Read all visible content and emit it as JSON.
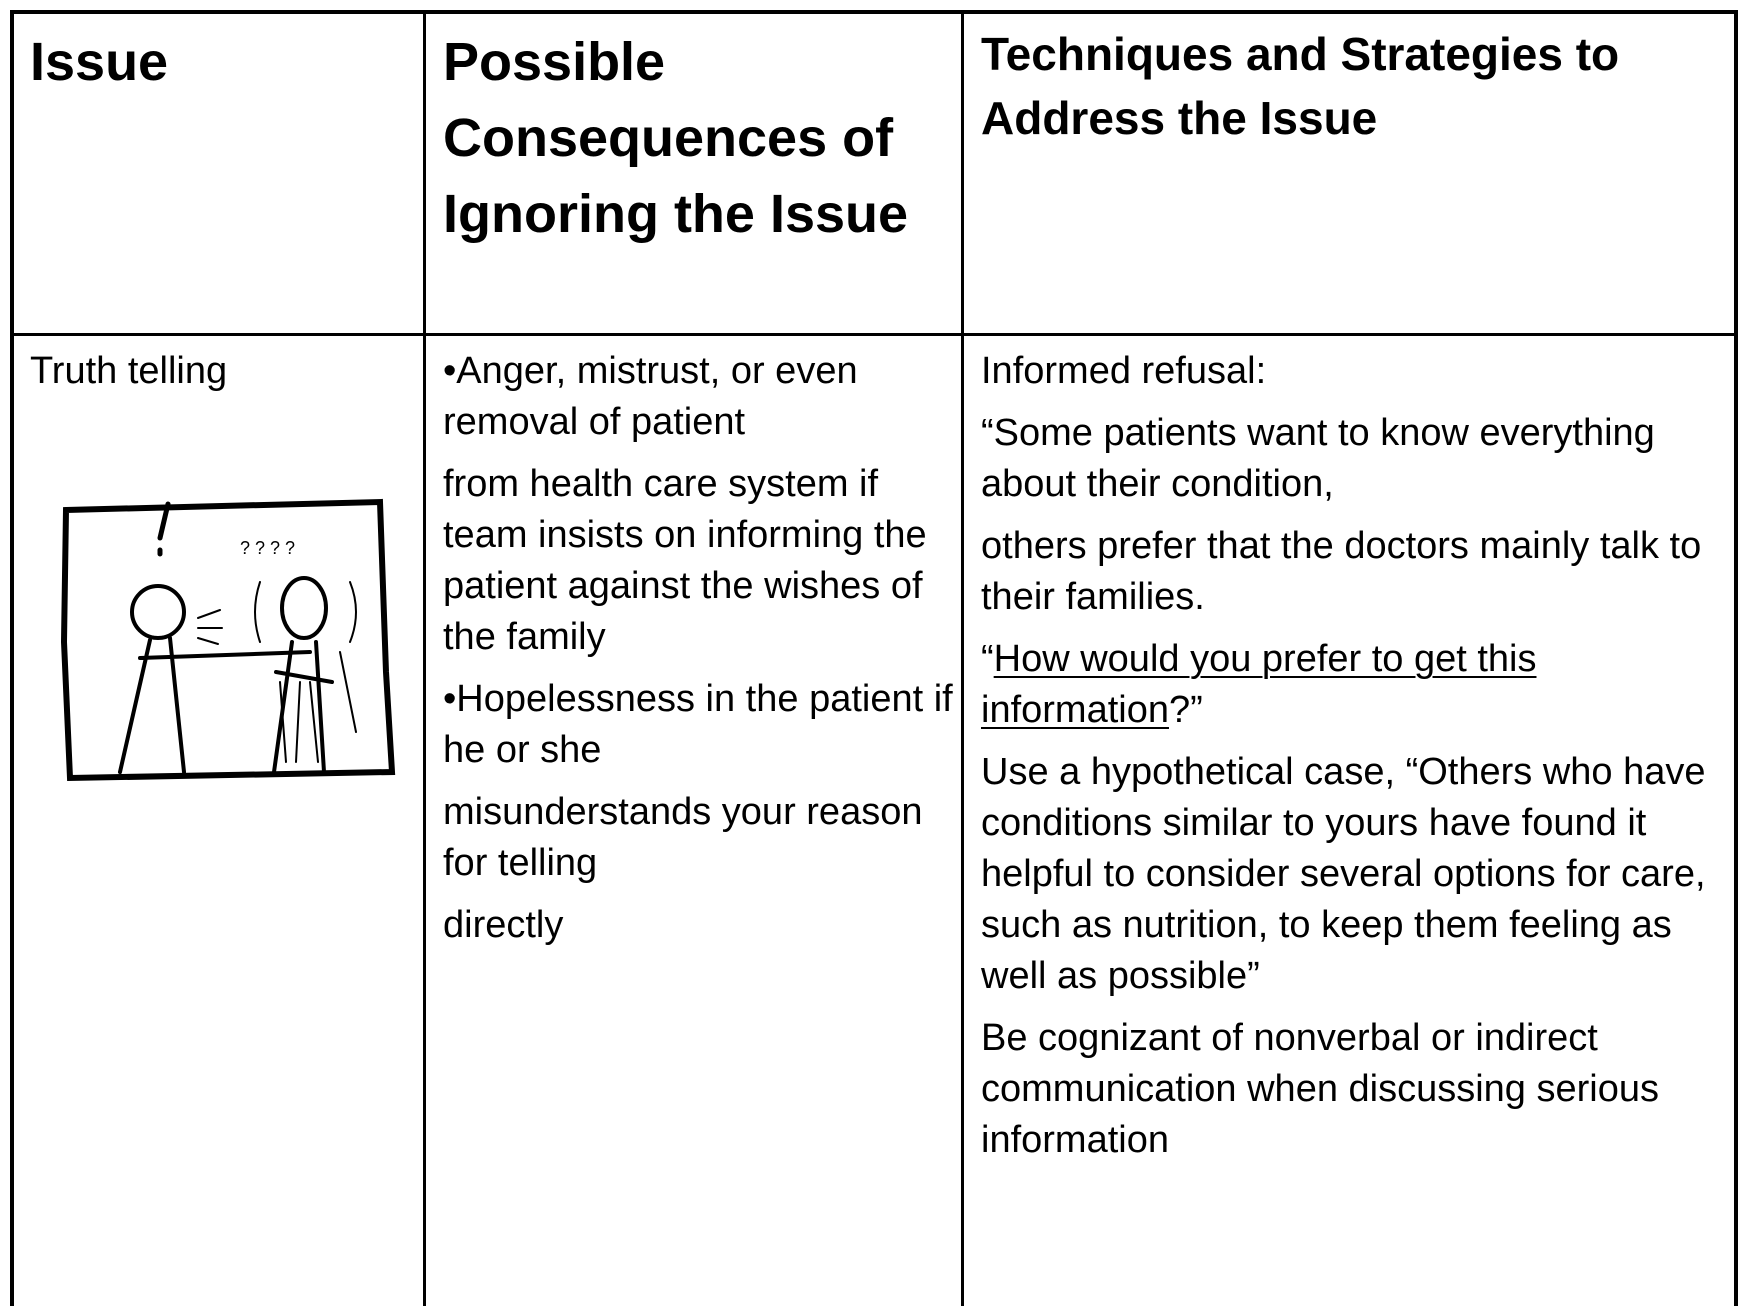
{
  "table": {
    "headers": [
      "Issue",
      "Possible Consequences of Ignoring the Issue",
      "Techniques and Strategies to Address the Issue"
    ],
    "rows": [
      [
        [
          "Truth telling"
        ],
        [
          "•Anger, mistrust, or even removal of patient",
          "from health care system if team insists on informing the patient against the wishes of the family",
          "•Hopelessness in the patient if he or she",
          "misunderstands your reason for telling",
          "directly"
        ],
        [
          "Informed refusal:",
          "“Some patients want to know everything about their condition,",
          "others prefer that the doctors mainly talk to their families.",
          {
            "before": "“",
            "underlined": "How would you prefer to get this information",
            "after": "?”"
          },
          "Use a hypothetical case, “Others who have conditions similar to yours have found it helpful to consider several options for care, such as nutrition, to keep them feeling as well as possible”",
          "Be cognizant of nonverbal or indirect communication when discussing serious information"
        ]
      ]
    ]
  }
}
